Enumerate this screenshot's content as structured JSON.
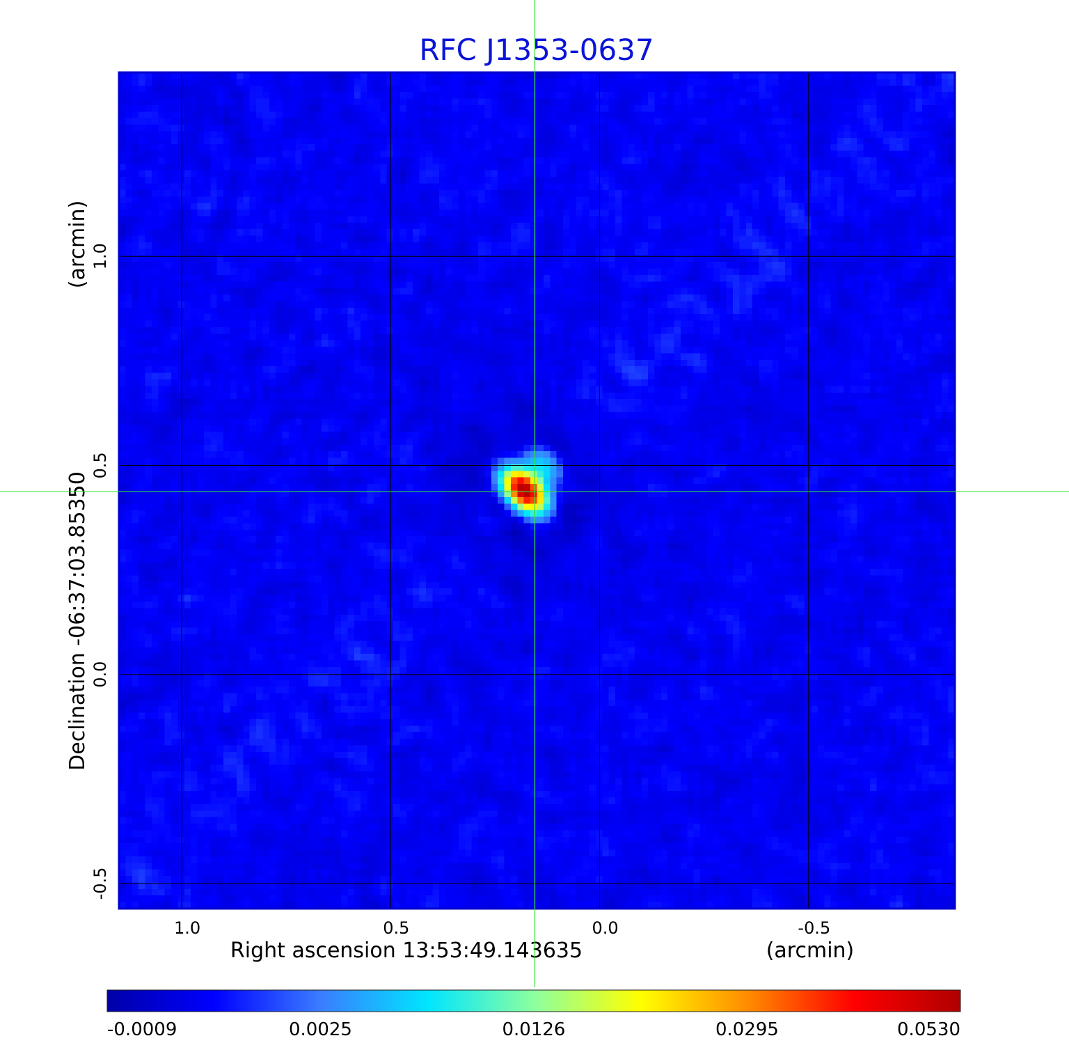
{
  "chart_data": {
    "type": "heatmap",
    "title": "RFC J1353-0637",
    "title_color": "#0a14d8",
    "xlabel": "Right ascension  13:53:49.143635",
    "x_unit": "(arcmin)",
    "ylabel": "Declination  -06:37:03.85350",
    "y_unit": "(arcmin)",
    "xlim": [
      1.15,
      -0.85
    ],
    "ylim": [
      -0.56,
      1.44
    ],
    "x_ticks": [
      {
        "value": 1.0,
        "label": "1.0"
      },
      {
        "value": 0.5,
        "label": "0.5"
      },
      {
        "value": 0.0,
        "label": "0.0"
      },
      {
        "value": -0.5,
        "label": "-0.5"
      }
    ],
    "y_ticks": [
      {
        "value": 1.0,
        "label": "1.0"
      },
      {
        "value": 0.5,
        "label": "0.5"
      },
      {
        "value": 0.0,
        "label": "0.0"
      },
      {
        "value": -0.5,
        "label": "-0.5"
      }
    ],
    "grid": true,
    "crosshair": {
      "x": 0.155,
      "y": 0.437,
      "color": "#33e633"
    },
    "background_level": 0.0006,
    "source": {
      "x": 0.18,
      "y": 0.44,
      "peak": 0.053
    },
    "colorbar": {
      "ticks": [
        {
          "value": -0.0009,
          "label": "-0.0009"
        },
        {
          "value": 0.0025,
          "label": "0.0025"
        },
        {
          "value": 0.0126,
          "label": "0.0126"
        },
        {
          "value": 0.0295,
          "label": "0.0295"
        },
        {
          "value": 0.053,
          "label": "0.0530"
        }
      ],
      "stops": [
        "#0000a8",
        "#0000ff",
        "#3a7dff",
        "#00e5ff",
        "#8cffa0",
        "#ffff00",
        "#ff8c00",
        "#ff0000",
        "#b00000"
      ],
      "placement": "bottom"
    }
  }
}
